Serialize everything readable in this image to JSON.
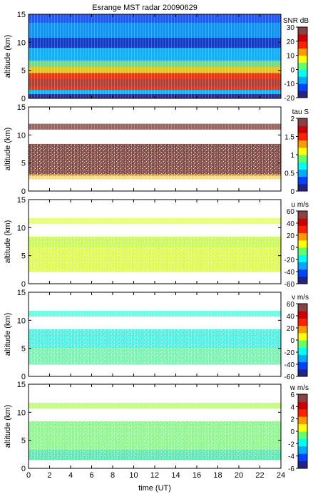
{
  "chart_data": {
    "title": "Esrange MST radar 20090629",
    "xlabel": "time (UT)",
    "x_ticks": [
      0,
      2,
      4,
      6,
      8,
      10,
      12,
      14,
      16,
      18,
      20,
      22,
      24
    ],
    "xlim": [
      0,
      24
    ],
    "panels": [
      {
        "type": "heatmap",
        "ylabel": "altitude (km)",
        "ylim": [
          0,
          15
        ],
        "y_ticks": [
          0,
          5,
          10,
          15
        ],
        "colorbar": {
          "label": "SNR dB",
          "range": [
            -20,
            30
          ],
          "ticks": [
            -20,
            -10,
            0,
            10,
            20,
            30
          ]
        },
        "colormap": [
          "#222288",
          "#0044ff",
          "#00aaff",
          "#00ffee",
          "#66ff66",
          "#ffff00",
          "#ff9900",
          "#ff2200",
          "#cc0000",
          "#884444"
        ]
      },
      {
        "type": "heatmap",
        "ylabel": "altitude (km)",
        "ylim": [
          0,
          15
        ],
        "y_ticks": [
          0,
          5,
          10,
          15
        ],
        "colorbar": {
          "label": "tau S",
          "range": [
            0,
            2
          ],
          "ticks": [
            0,
            0.5,
            1,
            1.5,
            2
          ]
        },
        "colormap": [
          "#222288",
          "#0044ff",
          "#00aaff",
          "#00ffee",
          "#66ff66",
          "#ffff00",
          "#ff9900",
          "#ff2200",
          "#cc0000",
          "#884444"
        ]
      },
      {
        "type": "heatmap",
        "ylabel": "altitude (km)",
        "ylim": [
          0,
          15
        ],
        "y_ticks": [
          0,
          5,
          10,
          15
        ],
        "colorbar": {
          "label": "u m/s",
          "range": [
            -60,
            60
          ],
          "ticks": [
            -60,
            -40,
            -20,
            0,
            20,
            40,
            60
          ]
        },
        "colormap": [
          "#222288",
          "#0044ff",
          "#00aaff",
          "#00ffee",
          "#66ff66",
          "#ffff00",
          "#ff9900",
          "#ff2200",
          "#cc0000",
          "#884444"
        ]
      },
      {
        "type": "heatmap",
        "ylabel": "altitude (km)",
        "ylim": [
          0,
          15
        ],
        "y_ticks": [
          0,
          5,
          10,
          15
        ],
        "colorbar": {
          "label": "v m/s",
          "range": [
            -60,
            60
          ],
          "ticks": [
            -60,
            -40,
            -20,
            0,
            20,
            40,
            60
          ]
        },
        "colormap": [
          "#222288",
          "#0044ff",
          "#00aaff",
          "#00ffee",
          "#66ff66",
          "#ffff00",
          "#ff9900",
          "#ff2200",
          "#cc0000",
          "#884444"
        ]
      },
      {
        "type": "heatmap",
        "ylabel": "altitude (km)",
        "ylim": [
          0,
          15
        ],
        "y_ticks": [
          0,
          5,
          10,
          15
        ],
        "colorbar": {
          "label": "w m/s",
          "range": [
            -6,
            6
          ],
          "ticks": [
            -6,
            -4,
            -2,
            0,
            2,
            4,
            6
          ]
        },
        "colormap": [
          "#222288",
          "#0044ff",
          "#00aaff",
          "#00ffee",
          "#66ff66",
          "#ffff00",
          "#ff9900",
          "#ff2200",
          "#cc0000",
          "#884444"
        ]
      }
    ]
  }
}
